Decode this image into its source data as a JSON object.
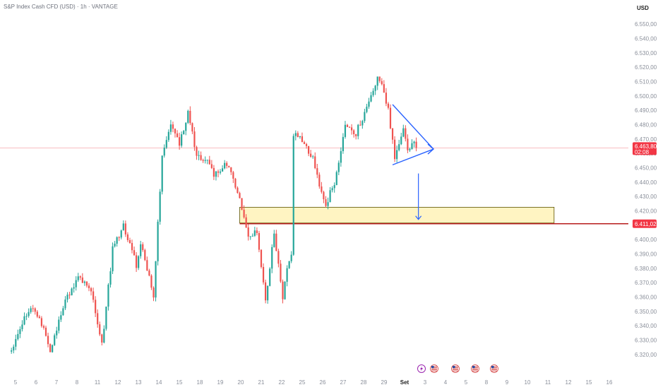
{
  "chart_data": {
    "type": "candlestick",
    "title": "S&P Index Cash CFD (USD) · 1h · VANTAGE",
    "currency_label": "USD",
    "y_ticks": [
      "6.550,00",
      "6.540,00",
      "6.530,00",
      "6.520,00",
      "6.510,00",
      "6.500,00",
      "6.490,00",
      "6.480,00",
      "6.470,00",
      "6.460,00",
      "6.450,00",
      "6.440,00",
      "6.430,00",
      "6.420,00",
      "6.410,00",
      "6.400,00",
      "6.390,00",
      "6.380,00",
      "6.370,00",
      "6.360,00",
      "6.350,00",
      "6.340,00",
      "6.330,00",
      "6.320,00"
    ],
    "y_tick_values": [
      6550,
      6540,
      6530,
      6520,
      6510,
      6500,
      6490,
      6480,
      6470,
      6460,
      6450,
      6440,
      6430,
      6420,
      6410,
      6400,
      6390,
      6380,
      6370,
      6360,
      6350,
      6340,
      6330,
      6320
    ],
    "ylim": [
      6316,
      6553
    ],
    "x_ticks": [
      "5",
      "6",
      "7",
      "8",
      "11",
      "12",
      "13",
      "14",
      "15",
      "18",
      "19",
      "20",
      "21",
      "22",
      "25",
      "26",
      "27",
      "28",
      "29",
      "Set",
      "3",
      "4",
      "5",
      "8",
      "9",
      "10",
      "11",
      "12",
      "15",
      "16"
    ],
    "price_labels": {
      "current": {
        "price": "6.463,80",
        "countdown": "02:08",
        "value": 6463.8
      },
      "support": {
        "price": "6.411,02",
        "value": 6411.02
      }
    },
    "zone": {
      "top": 6422.5,
      "bottom": 6411.5,
      "from_index": 106,
      "to_index": 252
    },
    "triangle_target_index": 196,
    "arrow_target_value": 6414,
    "anchors": [
      [
        0,
        6322
      ],
      [
        6,
        6346
      ],
      [
        10,
        6352
      ],
      [
        14,
        6342
      ],
      [
        18,
        6320
      ],
      [
        24,
        6354
      ],
      [
        30,
        6372
      ],
      [
        34,
        6372
      ],
      [
        38,
        6358
      ],
      [
        42,
        6326
      ],
      [
        47,
        6394
      ],
      [
        52,
        6410
      ],
      [
        58,
        6382
      ],
      [
        60,
        6398
      ],
      [
        66,
        6360
      ],
      [
        70,
        6460
      ],
      [
        74,
        6480
      ],
      [
        78,
        6466
      ],
      [
        82,
        6488
      ],
      [
        86,
        6458
      ],
      [
        90,
        6456
      ],
      [
        94,
        6446
      ],
      [
        100,
        6452
      ],
      [
        104,
        6438
      ],
      [
        108,
        6416
      ],
      [
        110,
        6404
      ],
      [
        114,
        6406
      ],
      [
        118,
        6358
      ],
      [
        122,
        6406
      ],
      [
        126,
        6358
      ],
      [
        128,
        6382
      ],
      [
        130,
        6390
      ],
      [
        131,
        6474
      ],
      [
        134,
        6470
      ],
      [
        140,
        6456
      ],
      [
        142,
        6444
      ],
      [
        144,
        6434
      ],
      [
        146,
        6424
      ],
      [
        150,
        6440
      ],
      [
        152,
        6452
      ],
      [
        155,
        6480
      ],
      [
        160,
        6474
      ],
      [
        164,
        6488
      ],
      [
        168,
        6502
      ],
      [
        170,
        6512
      ],
      [
        172,
        6506
      ],
      [
        175,
        6490
      ],
      [
        178,
        6458
      ],
      [
        182,
        6478
      ],
      [
        184,
        6462
      ],
      [
        187,
        6470
      ],
      [
        188,
        6462
      ]
    ],
    "event_icons": [
      "lightning-icon",
      "us-flag-icon",
      "us-flag-icon",
      "us-flag-icon",
      "us-flag-icon"
    ],
    "colors": {
      "up": "#26a69a",
      "down": "#ef5350",
      "zone_fill": "#fff4c2",
      "zone_stroke": "#5a5200",
      "support_line": "#b71c1c",
      "pattern": "#2962ff",
      "current_price": "#f23645"
    }
  }
}
